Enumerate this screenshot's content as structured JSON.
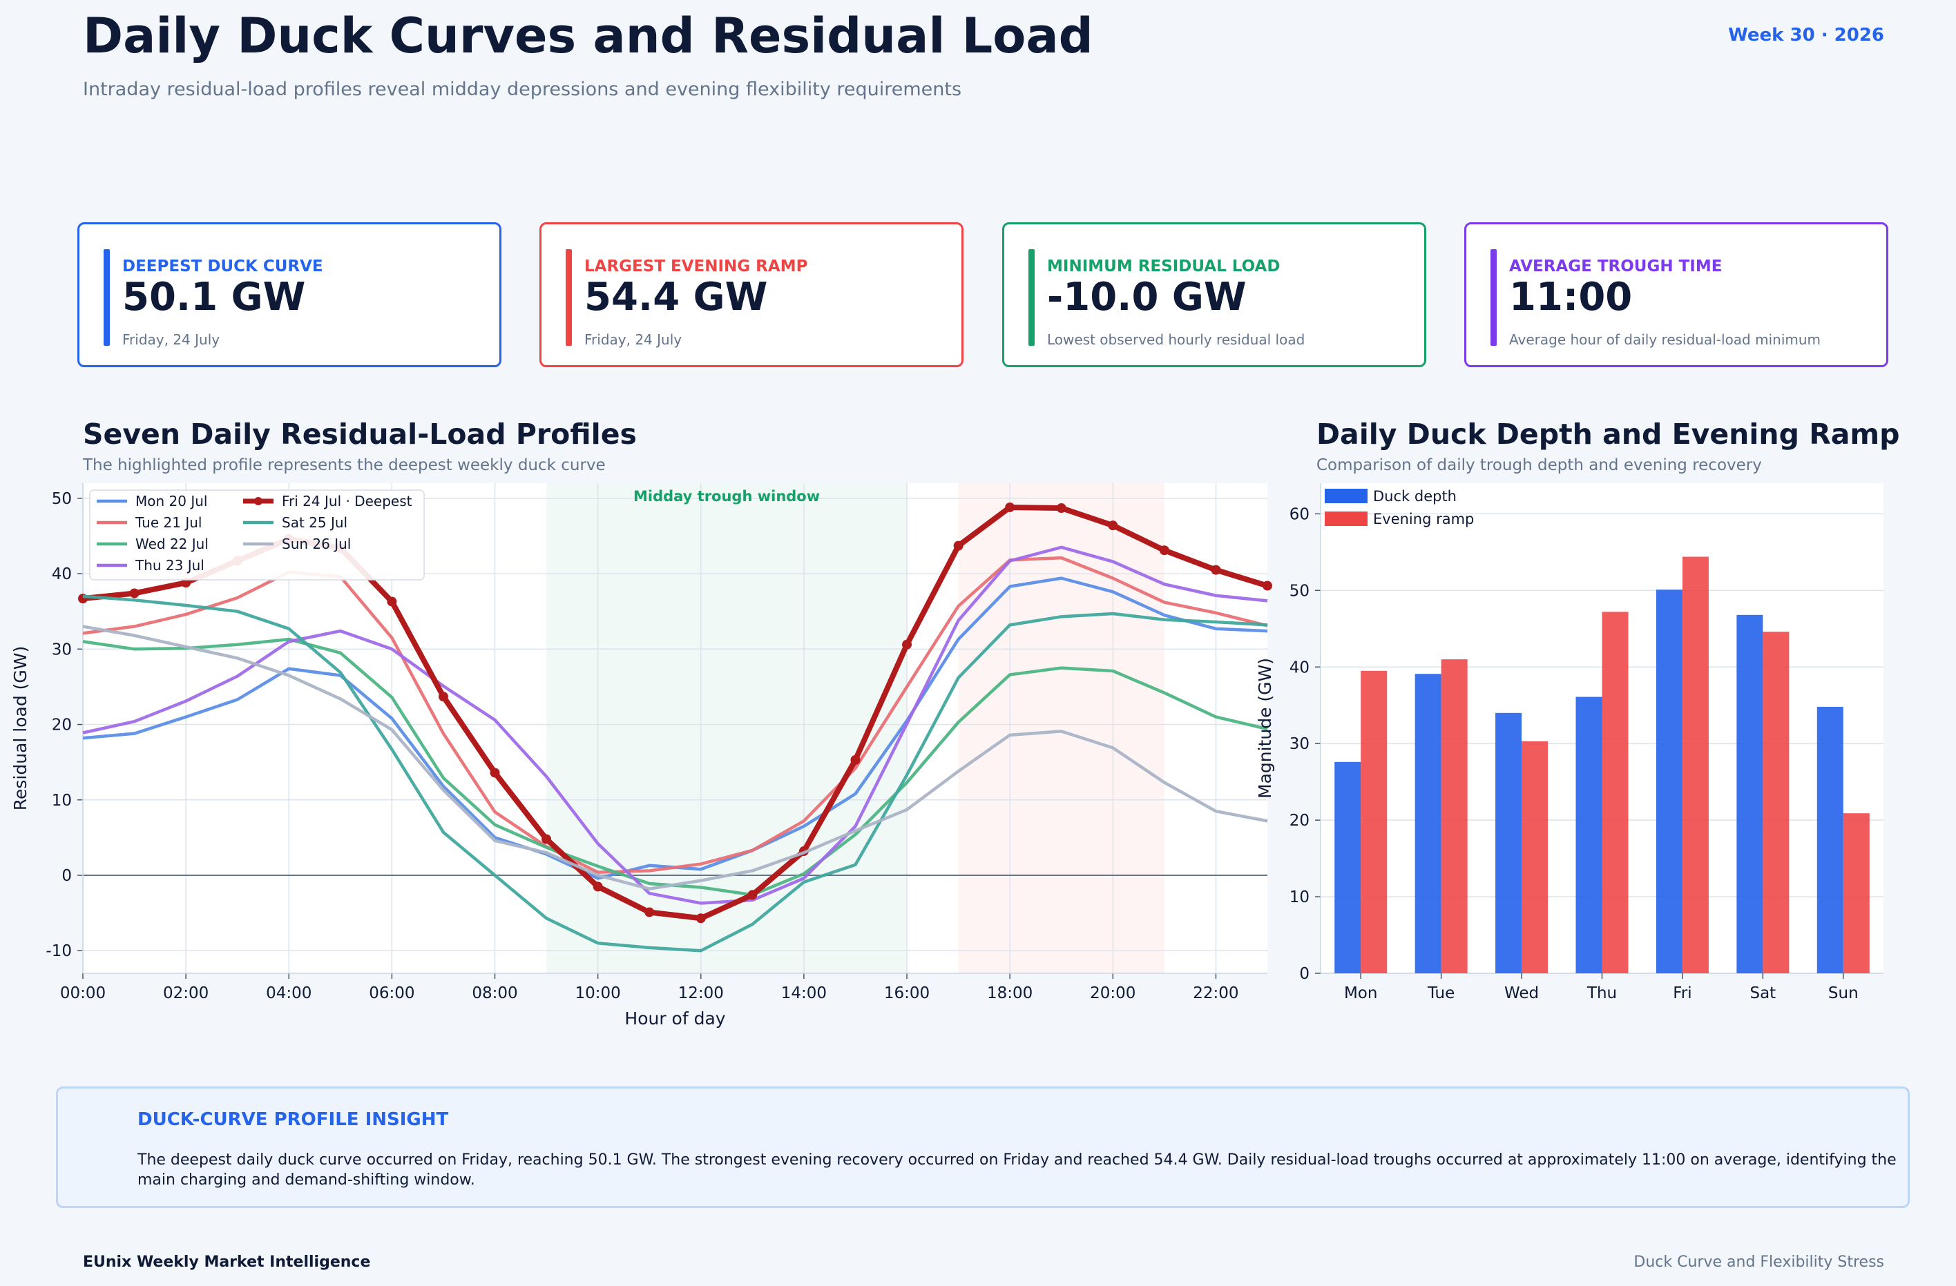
{
  "header": {
    "title": "Daily Duck Curves and Residual Load",
    "subtitle": "Intraday residual-load profiles reveal midday depressions and evening flexibility requirements",
    "week": "Week 30 · 2026"
  },
  "kpis": [
    {
      "label": "DEEPEST DUCK CURVE",
      "value": "50.1 GW",
      "note": "Friday, 24 July",
      "color": "#2563eb"
    },
    {
      "label": "LARGEST EVENING RAMP",
      "value": "54.4 GW",
      "note": "Friday, 24 July",
      "color": "#ef4444"
    },
    {
      "label": "MINIMUM RESIDUAL LOAD",
      "value": "-10.0 GW",
      "note": "Lowest observed hourly residual load",
      "color": "#16a06a"
    },
    {
      "label": "AVERAGE TROUGH TIME",
      "value": "11:00",
      "note": "Average hour of daily residual-load minimum",
      "color": "#7c3aed"
    }
  ],
  "line_section": {
    "title": "Seven Daily Residual-Load Profiles",
    "subtitle": "The highlighted profile represents the deepest weekly duck curve",
    "band_label": "Midday trough window"
  },
  "bar_section": {
    "title": "Daily Duck Depth and Evening Ramp",
    "subtitle": "Comparison of daily trough depth and evening recovery"
  },
  "insight": {
    "title": "DUCK-CURVE PROFILE INSIGHT",
    "text": "The deepest daily duck curve occurred on Friday, reaching 50.1 GW. The strongest evening recovery occurred on Friday and reached 54.4 GW. Daily residual-load troughs occurred at approximately 11:00 on average, identifying the main charging and demand-shifting window."
  },
  "footer": {
    "left": "EUnix Weekly Market Intelligence",
    "right": "Duck Curve and Flexibility Stress"
  },
  "chart_data": [
    {
      "type": "line",
      "xlabel": "Hour of day",
      "ylabel": "Residual load (GW)",
      "x": [
        0,
        1,
        2,
        3,
        4,
        5,
        6,
        7,
        8,
        9,
        10,
        11,
        12,
        13,
        14,
        15,
        16,
        17,
        18,
        19,
        20,
        21,
        22,
        23
      ],
      "x_tick_labels": [
        "00:00",
        "02:00",
        "04:00",
        "06:00",
        "08:00",
        "10:00",
        "12:00",
        "14:00",
        "16:00",
        "18:00",
        "20:00",
        "22:00"
      ],
      "xlim": [
        0,
        23
      ],
      "ylim": [
        -13,
        52
      ],
      "y_ticks": [
        -10,
        0,
        10,
        20,
        30,
        40,
        50
      ],
      "grid": true,
      "legend_position": "top-left",
      "shaded_windows": [
        {
          "from": 9,
          "to": 16,
          "color": "#16a06a"
        },
        {
          "from": 17,
          "to": 21,
          "color": "#ef4444"
        }
      ],
      "series": [
        {
          "name": "Mon 20 Jul",
          "color": "#5b8ee6",
          "values": [
            18.2,
            18.8,
            21.0,
            23.3,
            27.4,
            26.5,
            20.8,
            11.8,
            5.0,
            2.8,
            -0.4,
            1.3,
            0.8,
            3.3,
            6.5,
            10.8,
            20.5,
            31.3,
            38.3,
            39.4,
            37.6,
            34.5,
            32.7,
            32.4
          ]
        },
        {
          "name": "Tue 21 Jul",
          "color": "#e87074",
          "values": [
            32.1,
            33.0,
            34.6,
            36.8,
            40.2,
            39.6,
            31.5,
            18.8,
            8.4,
            3.8,
            0.4,
            0.6,
            1.5,
            3.3,
            7.2,
            14.2,
            25.0,
            35.7,
            41.8,
            42.1,
            39.4,
            36.2,
            34.8,
            33.1
          ]
        },
        {
          "name": "Wed 22 Jul",
          "color": "#4cb584",
          "values": [
            31.0,
            30.0,
            30.1,
            30.6,
            31.3,
            29.5,
            23.6,
            12.9,
            6.7,
            3.7,
            1.2,
            -1.1,
            -1.6,
            -2.6,
            0.2,
            5.4,
            12.3,
            20.3,
            26.6,
            27.5,
            27.1,
            24.2,
            21.0,
            19.4
          ]
        },
        {
          "name": "Thu 23 Jul",
          "color": "#9f6ce8",
          "values": [
            18.9,
            20.4,
            23.1,
            26.4,
            31.0,
            32.4,
            30.0,
            25.1,
            20.6,
            13.1,
            4.2,
            -2.4,
            -3.7,
            -3.3,
            -0.4,
            6.5,
            20.1,
            33.8,
            41.7,
            43.5,
            41.6,
            38.6,
            37.1,
            36.4
          ]
        },
        {
          "name": "Fri 24 Jul · Deepest",
          "color": "#b21b1b",
          "highlight": true,
          "values": [
            36.7,
            37.4,
            38.8,
            41.7,
            44.6,
            43.4,
            36.3,
            23.7,
            13.6,
            4.8,
            -1.5,
            -4.9,
            -5.7,
            -2.6,
            3.2,
            15.3,
            30.6,
            43.7,
            48.8,
            48.7,
            46.4,
            43.1,
            40.5,
            38.4
          ]
        },
        {
          "name": "Sat 25 Jul",
          "color": "#40a89d",
          "values": [
            37.0,
            36.5,
            35.8,
            35.0,
            32.7,
            26.9,
            16.7,
            5.7,
            0.0,
            -5.7,
            -9.0,
            -9.6,
            -10.0,
            -6.5,
            -0.9,
            1.4,
            13.3,
            26.2,
            33.2,
            34.3,
            34.7,
            33.9,
            33.6,
            33.2
          ]
        },
        {
          "name": "Sun 26 Jul",
          "color": "#aab4c6",
          "values": [
            33.0,
            31.8,
            30.3,
            28.8,
            26.5,
            23.4,
            19.3,
            11.3,
            4.6,
            3.0,
            0.0,
            -1.8,
            -0.7,
            0.6,
            3.0,
            5.9,
            8.7,
            13.8,
            18.6,
            19.1,
            16.9,
            12.3,
            8.5,
            7.2
          ]
        }
      ]
    },
    {
      "type": "bar",
      "ylabel": "Magnitude (GW)",
      "categories": [
        "Mon",
        "Tue",
        "Wed",
        "Thu",
        "Fri",
        "Sat",
        "Sun"
      ],
      "ylim": [
        0,
        64
      ],
      "y_ticks": [
        0,
        10,
        20,
        30,
        40,
        50,
        60
      ],
      "grid": true,
      "legend_position": "top-left",
      "series": [
        {
          "name": "Duck depth",
          "color": "#2563eb",
          "values": [
            27.6,
            39.1,
            34.0,
            36.1,
            50.1,
            46.8,
            34.8
          ]
        },
        {
          "name": "Evening ramp",
          "color": "#ef4444",
          "values": [
            39.5,
            41.0,
            30.3,
            47.2,
            54.4,
            44.6,
            20.9
          ]
        }
      ]
    }
  ]
}
